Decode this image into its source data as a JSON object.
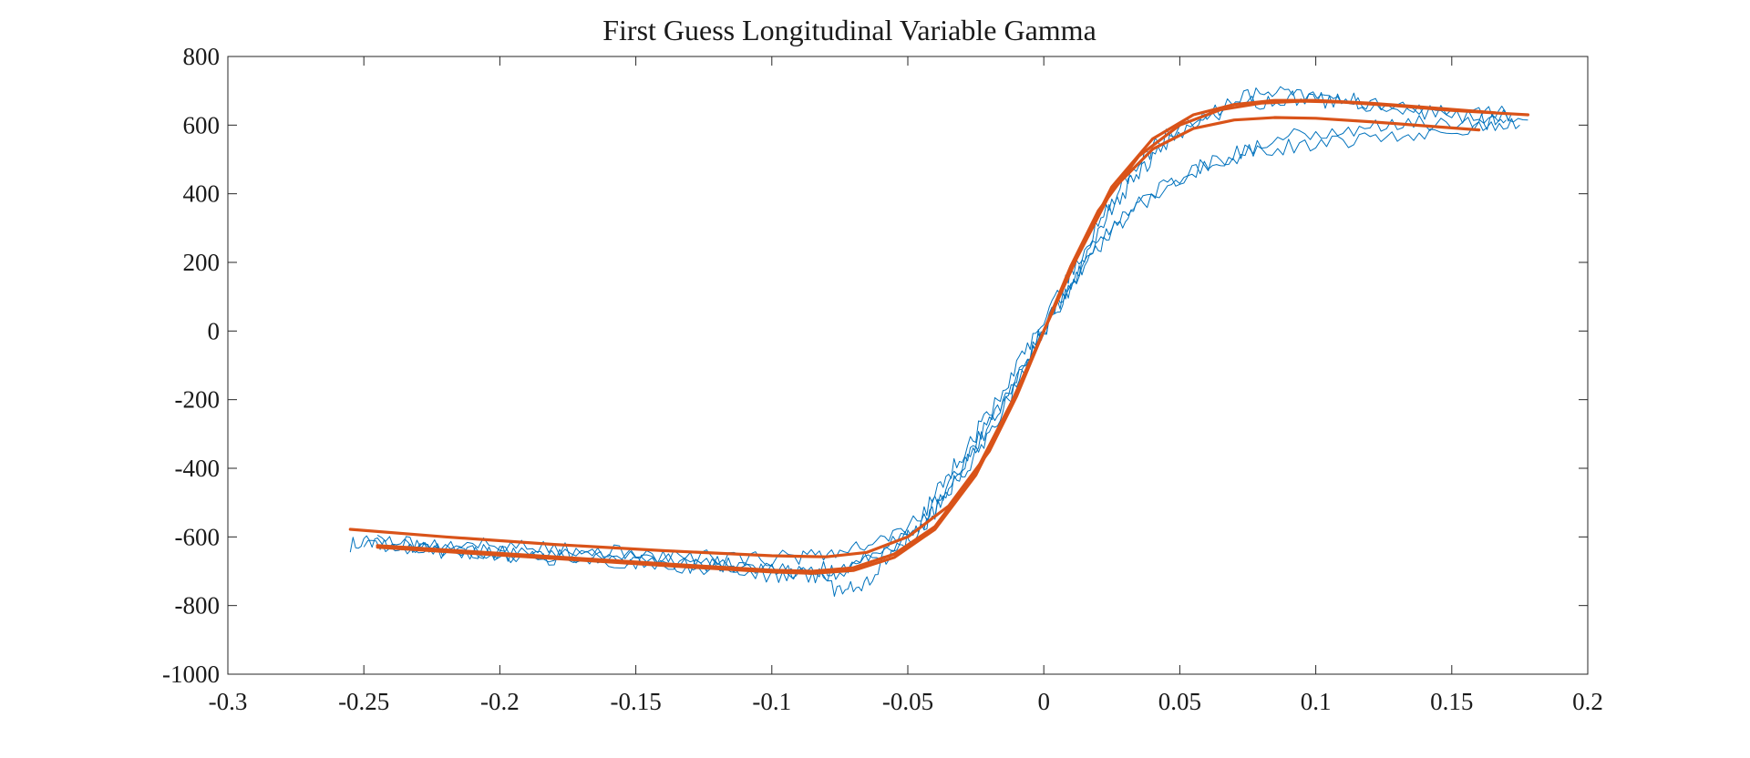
{
  "chart_data": {
    "type": "line",
    "title": "First Guess Longitudinal Variable Gamma",
    "xlabel": "",
    "ylabel": "",
    "xlim": [
      -0.3,
      0.2
    ],
    "ylim": [
      -1000,
      800
    ],
    "x_ticks": [
      -0.3,
      -0.25,
      -0.2,
      -0.15,
      -0.1,
      -0.05,
      0,
      0.05,
      0.1,
      0.15,
      0.2
    ],
    "x_tick_labels": [
      "-0.3",
      "-0.25",
      "-0.2",
      "-0.15",
      "-0.1",
      "-0.05",
      "0",
      "0.05",
      "0.1",
      "0.15",
      "0.2"
    ],
    "y_ticks": [
      800,
      600,
      400,
      200,
      0,
      -200,
      -400,
      -600,
      -800,
      -1000
    ],
    "y_tick_labels": [
      "800",
      "600",
      "400",
      "200",
      "0",
      "-200",
      "-400",
      "-600",
      "-800",
      "-1000"
    ],
    "grid": false,
    "colors": {
      "measured": "#0072bd",
      "fit": "#d95319",
      "axes": "#262626"
    },
    "series": [
      {
        "role": "measured",
        "points": [
          [
            -0.255,
            -620
          ],
          [
            -0.245,
            -615
          ],
          [
            -0.23,
            -630
          ],
          [
            -0.21,
            -640
          ],
          [
            -0.19,
            -650
          ],
          [
            -0.17,
            -655
          ],
          [
            -0.15,
            -660
          ],
          [
            -0.13,
            -670
          ],
          [
            -0.11,
            -690
          ],
          [
            -0.09,
            -700
          ],
          [
            -0.075,
            -690
          ],
          [
            -0.06,
            -640
          ],
          [
            -0.045,
            -570
          ],
          [
            -0.035,
            -480
          ],
          [
            -0.025,
            -360
          ],
          [
            -0.015,
            -230
          ],
          [
            -0.005,
            -80
          ],
          [
            0.005,
            60
          ],
          [
            0.015,
            210
          ],
          [
            0.025,
            360
          ],
          [
            0.035,
            460
          ],
          [
            0.045,
            550
          ],
          [
            0.06,
            620
          ],
          [
            0.075,
            660
          ],
          [
            0.09,
            680
          ],
          [
            0.105,
            670
          ],
          [
            0.12,
            655
          ],
          [
            0.14,
            640
          ],
          [
            0.16,
            625
          ],
          [
            0.178,
            615
          ]
        ]
      },
      {
        "role": "measured",
        "points": [
          [
            -0.25,
            -630
          ],
          [
            -0.235,
            -625
          ],
          [
            -0.22,
            -640
          ],
          [
            -0.2,
            -650
          ],
          [
            -0.18,
            -660
          ],
          [
            -0.16,
            -670
          ],
          [
            -0.14,
            -680
          ],
          [
            -0.12,
            -690
          ],
          [
            -0.1,
            -700
          ],
          [
            -0.085,
            -710
          ],
          [
            -0.075,
            -760
          ],
          [
            -0.065,
            -730
          ],
          [
            -0.055,
            -640
          ],
          [
            -0.045,
            -560
          ],
          [
            -0.035,
            -450
          ],
          [
            -0.025,
            -330
          ],
          [
            -0.015,
            -200
          ],
          [
            -0.005,
            -60
          ],
          [
            0.005,
            80
          ],
          [
            0.015,
            200
          ],
          [
            0.025,
            300
          ],
          [
            0.035,
            380
          ],
          [
            0.05,
            450
          ],
          [
            0.065,
            500
          ],
          [
            0.08,
            530
          ],
          [
            0.1,
            550
          ],
          [
            0.12,
            565
          ],
          [
            0.14,
            580
          ],
          [
            0.16,
            590
          ],
          [
            0.175,
            600
          ]
        ]
      },
      {
        "role": "measured",
        "points": [
          [
            -0.245,
            -610
          ],
          [
            -0.23,
            -620
          ],
          [
            -0.21,
            -625
          ],
          [
            -0.19,
            -635
          ],
          [
            -0.17,
            -645
          ],
          [
            -0.15,
            -650
          ],
          [
            -0.13,
            -660
          ],
          [
            -0.11,
            -665
          ],
          [
            -0.09,
            -660
          ],
          [
            -0.075,
            -640
          ],
          [
            -0.06,
            -600
          ],
          [
            -0.045,
            -540
          ],
          [
            -0.035,
            -420
          ],
          [
            -0.025,
            -300
          ],
          [
            -0.015,
            -170
          ],
          [
            -0.005,
            -40
          ],
          [
            0.005,
            100
          ],
          [
            0.015,
            240
          ],
          [
            0.025,
            380
          ],
          [
            0.035,
            490
          ],
          [
            0.045,
            570
          ],
          [
            0.06,
            630
          ],
          [
            0.075,
            680
          ],
          [
            0.09,
            700
          ],
          [
            0.105,
            690
          ],
          [
            0.12,
            660
          ],
          [
            0.14,
            640
          ],
          [
            0.16,
            630
          ],
          [
            0.172,
            635
          ]
        ]
      },
      {
        "role": "measured",
        "points": [
          [
            -0.24,
            -625
          ],
          [
            -0.225,
            -635
          ],
          [
            -0.205,
            -645
          ],
          [
            -0.185,
            -655
          ],
          [
            -0.165,
            -665
          ],
          [
            -0.145,
            -675
          ],
          [
            -0.125,
            -690
          ],
          [
            -0.105,
            -705
          ],
          [
            -0.09,
            -715
          ],
          [
            -0.075,
            -700
          ],
          [
            -0.06,
            -650
          ],
          [
            -0.045,
            -580
          ],
          [
            -0.035,
            -470
          ],
          [
            -0.025,
            -340
          ],
          [
            -0.015,
            -210
          ],
          [
            -0.005,
            -70
          ],
          [
            0.005,
            70
          ],
          [
            0.015,
            190
          ],
          [
            0.025,
            290
          ],
          [
            0.035,
            370
          ],
          [
            0.05,
            440
          ],
          [
            0.065,
            500
          ],
          [
            0.08,
            550
          ],
          [
            0.1,
            580
          ],
          [
            0.12,
            595
          ],
          [
            0.14,
            605
          ],
          [
            0.16,
            610
          ],
          [
            0.17,
            615
          ]
        ]
      },
      {
        "role": "fit",
        "points": [
          [
            -0.255,
            -578
          ],
          [
            -0.22,
            -600
          ],
          [
            -0.18,
            -622
          ],
          [
            -0.14,
            -640
          ],
          [
            -0.1,
            -655
          ],
          [
            -0.08,
            -658
          ],
          [
            -0.065,
            -645
          ],
          [
            -0.05,
            -600
          ],
          [
            -0.035,
            -510
          ],
          [
            -0.02,
            -350
          ],
          [
            -0.01,
            -190
          ],
          [
            0,
            0
          ],
          [
            0.01,
            190
          ],
          [
            0.02,
            350
          ],
          [
            0.035,
            510
          ],
          [
            0.05,
            600
          ],
          [
            0.065,
            645
          ],
          [
            0.08,
            664
          ],
          [
            0.095,
            670
          ],
          [
            0.11,
            667
          ],
          [
            0.13,
            656
          ],
          [
            0.15,
            643
          ],
          [
            0.165,
            636
          ],
          [
            0.178,
            630
          ]
        ]
      },
      {
        "role": "fit",
        "points": [
          [
            -0.245,
            -625
          ],
          [
            -0.21,
            -643
          ],
          [
            -0.17,
            -663
          ],
          [
            -0.13,
            -683
          ],
          [
            -0.1,
            -697
          ],
          [
            -0.085,
            -700
          ],
          [
            -0.07,
            -690
          ],
          [
            -0.055,
            -650
          ],
          [
            -0.04,
            -570
          ],
          [
            -0.025,
            -410
          ],
          [
            -0.012,
            -210
          ],
          [
            0,
            0
          ],
          [
            0.012,
            210
          ],
          [
            0.025,
            410
          ],
          [
            0.04,
            530
          ],
          [
            0.055,
            590
          ],
          [
            0.07,
            615
          ],
          [
            0.085,
            622
          ],
          [
            0.1,
            620
          ],
          [
            0.12,
            610
          ],
          [
            0.14,
            598
          ],
          [
            0.16,
            586
          ]
        ]
      },
      {
        "role": "fit",
        "points": [
          [
            -0.245,
            -630
          ],
          [
            -0.21,
            -648
          ],
          [
            -0.17,
            -668
          ],
          [
            -0.13,
            -688
          ],
          [
            -0.1,
            -702
          ],
          [
            -0.085,
            -706
          ],
          [
            -0.07,
            -698
          ],
          [
            -0.055,
            -660
          ],
          [
            -0.04,
            -578
          ],
          [
            -0.025,
            -420
          ],
          [
            -0.012,
            -215
          ],
          [
            0,
            0
          ],
          [
            0.012,
            215
          ],
          [
            0.025,
            420
          ],
          [
            0.04,
            560
          ],
          [
            0.055,
            630
          ],
          [
            0.07,
            660
          ],
          [
            0.085,
            672
          ],
          [
            0.1,
            672
          ],
          [
            0.12,
            664
          ],
          [
            0.14,
            652
          ],
          [
            0.16,
            640
          ],
          [
            0.166,
            636
          ]
        ]
      }
    ]
  }
}
